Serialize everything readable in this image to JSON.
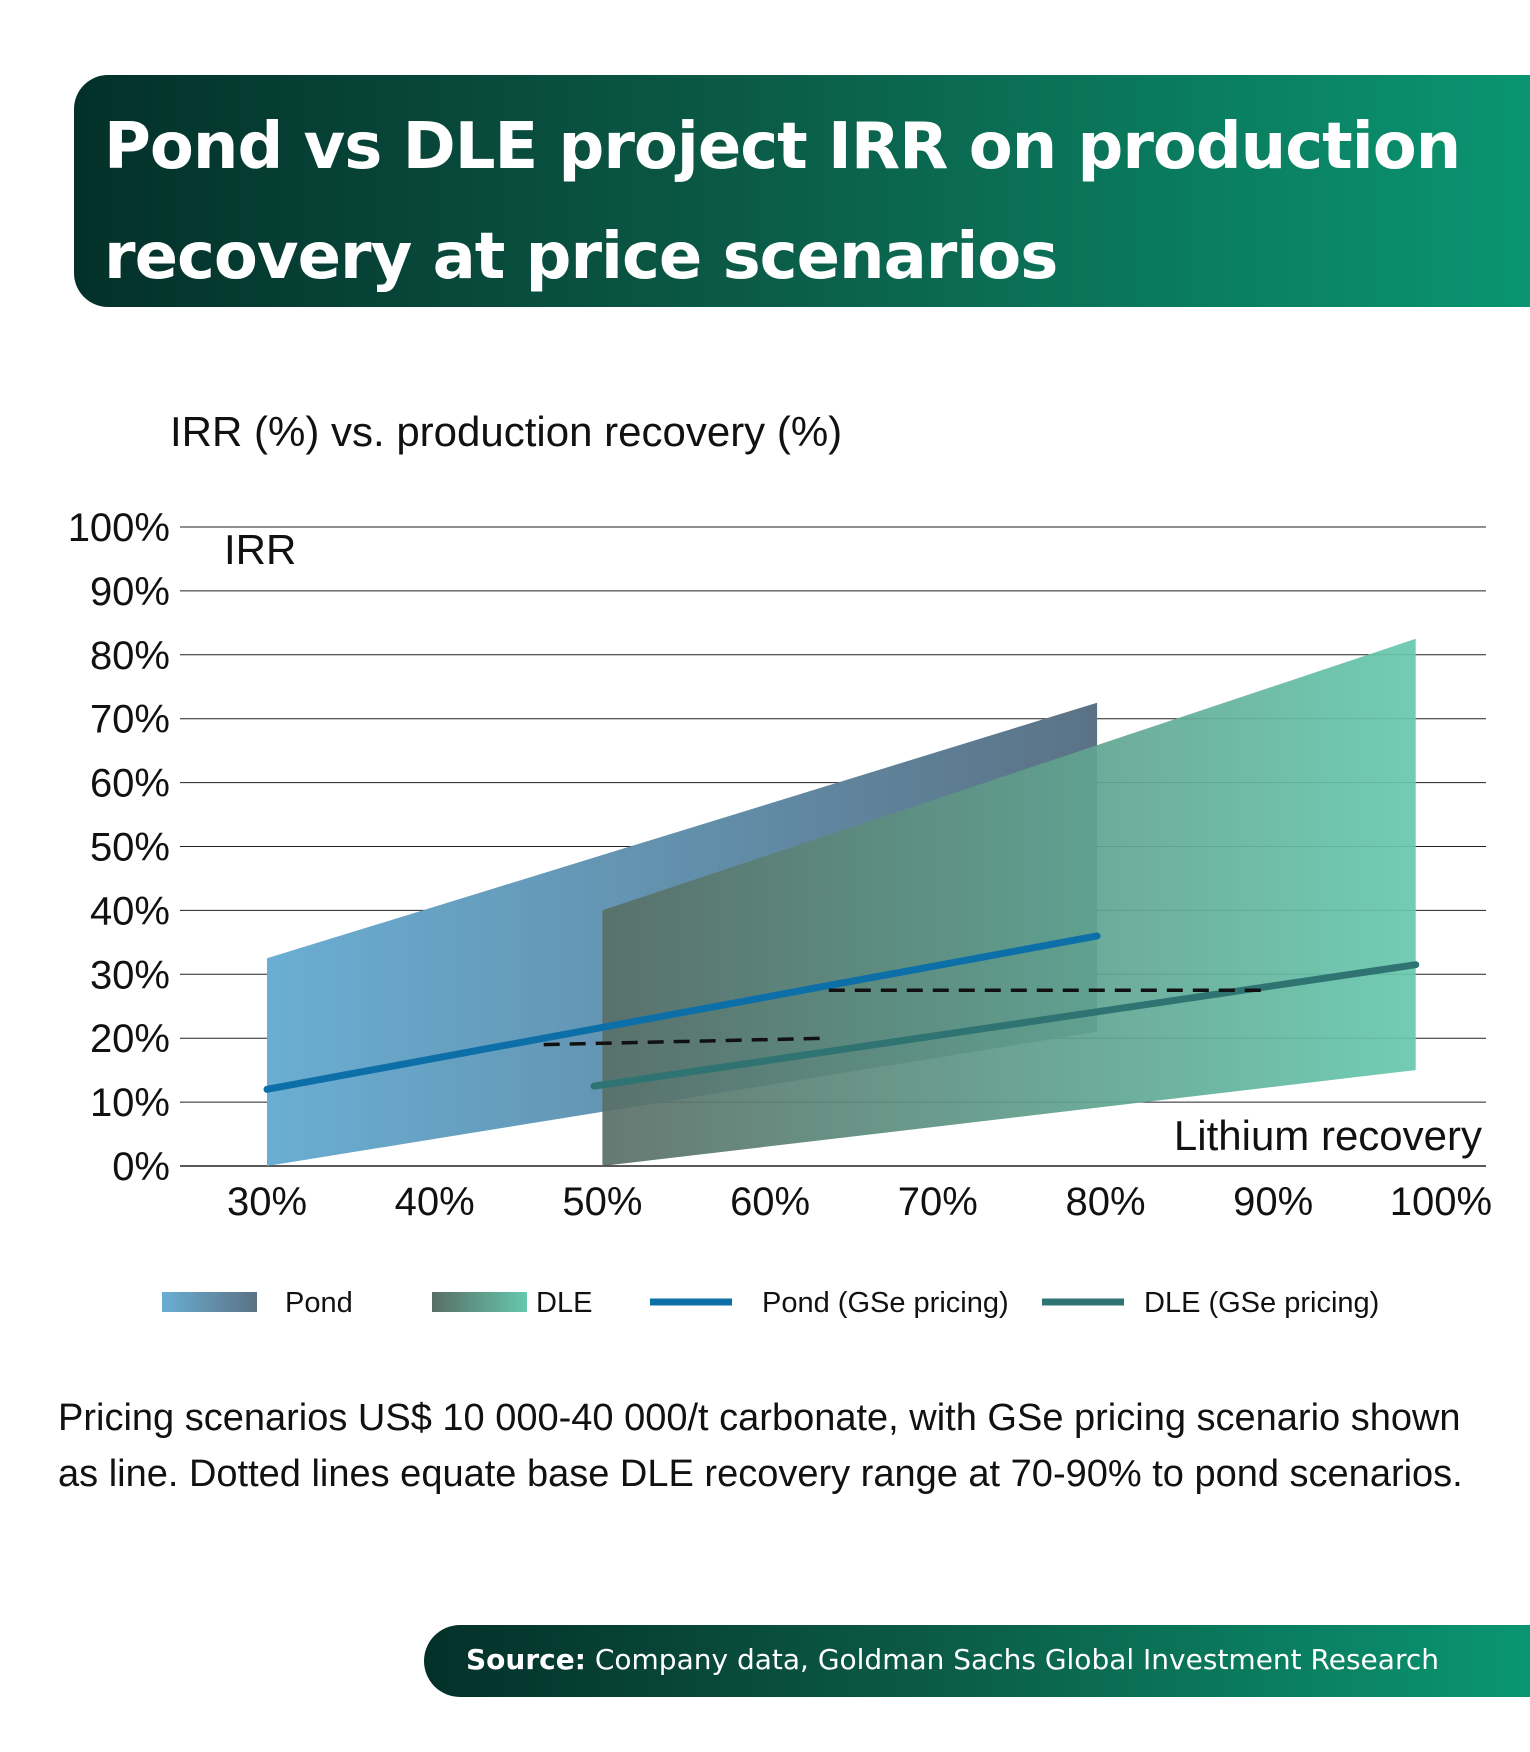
{
  "header": {
    "title": "Pond vs DLE project IRR on production recovery at price scenarios"
  },
  "colors": {
    "banner_dark": "#03302a",
    "banner_light": "#0a9672",
    "pond_band_left": "#6aaed3",
    "pond_band_right": "#5b7285",
    "dle_band_left": "#586e66",
    "dle_band_right": "#66c8ad",
    "pond_line": "#0d6fa8",
    "dle_line": "#2f7373",
    "dotted_line": "#111111"
  },
  "chart_data": {
    "type": "area",
    "title": "IRR (%) vs. production recovery (%)",
    "ylabel": "IRR",
    "xlabel": "Lithium recovery",
    "ylim": [
      0,
      100
    ],
    "xlim": [
      25,
      100
    ],
    "x_ticks": [
      "30%",
      "40%",
      "50%",
      "60%",
      "70%",
      "80%",
      "90%",
      "100%"
    ],
    "x_tick_values": [
      30,
      40,
      50,
      60,
      70,
      80,
      90,
      100
    ],
    "y_ticks": [
      "0%",
      "10%",
      "20%",
      "30%",
      "40%",
      "50%",
      "60%",
      "70%",
      "80%",
      "90%",
      "100%"
    ],
    "y_tick_values": [
      0,
      10,
      20,
      30,
      40,
      50,
      60,
      70,
      80,
      90,
      100
    ],
    "grid": true,
    "legend_position": "bottom",
    "bands": [
      {
        "name": "Pond",
        "x": [
          30,
          79.5
        ],
        "upper": [
          32.5,
          72.5
        ],
        "lower": [
          0,
          21
        ]
      },
      {
        "name": "DLE",
        "x": [
          50,
          98.5
        ],
        "upper": [
          40,
          82.5
        ],
        "lower": [
          0,
          15
        ]
      }
    ],
    "series": [
      {
        "name": "Pond (GSe pricing)",
        "x": [
          30,
          79.5
        ],
        "y": [
          12,
          36
        ]
      },
      {
        "name": "DLE (GSe pricing)",
        "x": [
          49.5,
          98.5
        ],
        "y": [
          12.5,
          31.5
        ]
      }
    ],
    "dotted_lines": [
      {
        "x": [
          46.5,
          63.5
        ],
        "y": [
          19,
          20
        ]
      },
      {
        "x": [
          63.5,
          89.5
        ],
        "y": [
          27.5,
          27.5
        ]
      }
    ],
    "legend": [
      "Pond",
      "DLE",
      "Pond (GSe pricing)",
      "DLE (GSe pricing)"
    ]
  },
  "note": "Pricing scenarios US$ 10 000-40 000/t carbonate, with GSe pricing scenario shown as line. Dotted lines equate base DLE recovery range at 70-90% to pond scenarios.",
  "source": {
    "label": "Source:",
    "text": " Company data, Goldman Sachs Global Investment Research"
  }
}
